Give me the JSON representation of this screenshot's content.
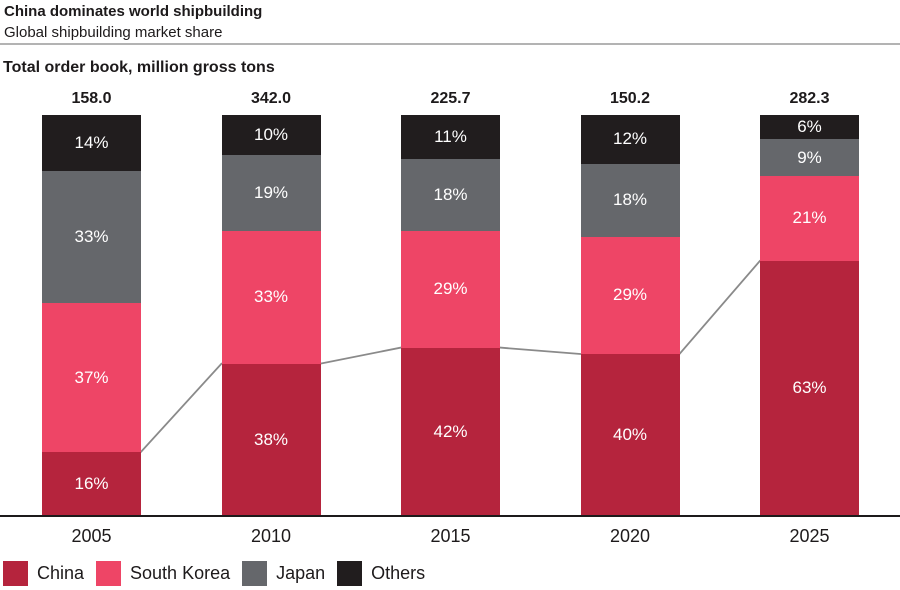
{
  "header": {
    "title": "China dominates world shipbuilding",
    "subtitle": "Global shipbuilding market share",
    "unit_label": "Total order book, million gross tons"
  },
  "colors": {
    "background": "#ffffff",
    "text": "#1d1a1b",
    "divider": "#b3b3b3",
    "axis_line": "#1d1a1b",
    "trend_line": "#8a8a8a",
    "value_label_text": "#ffffff"
  },
  "chart_data": {
    "type": "bar",
    "variant": "stacked-100-percent-column",
    "title": "China dominates world shipbuilding",
    "subtitle": "Global shipbuilding market share",
    "unit_label": "Total order book, million gross tons",
    "categories": [
      "2005",
      "2010",
      "2015",
      "2020",
      "2025"
    ],
    "totals": [
      "158.0",
      "342.0",
      "225.7",
      "150.2",
      "282.3"
    ],
    "series": [
      {
        "name": "China",
        "color": "#b5243d",
        "values": [
          16,
          38,
          42,
          40,
          63
        ]
      },
      {
        "name": "South Korea",
        "color": "#ee4566",
        "values": [
          37,
          33,
          29,
          29,
          21
        ]
      },
      {
        "name": "Japan",
        "color": "#65676b",
        "values": [
          33,
          19,
          18,
          18,
          9
        ]
      },
      {
        "name": "Others",
        "color": "#211d1e",
        "values": [
          14,
          10,
          11,
          12,
          6
        ]
      }
    ],
    "value_suffix": "%",
    "legend_position": "bottom",
    "grid": false,
    "connector_line": {
      "follows_series": "China",
      "color": "#8a8a8a"
    }
  }
}
